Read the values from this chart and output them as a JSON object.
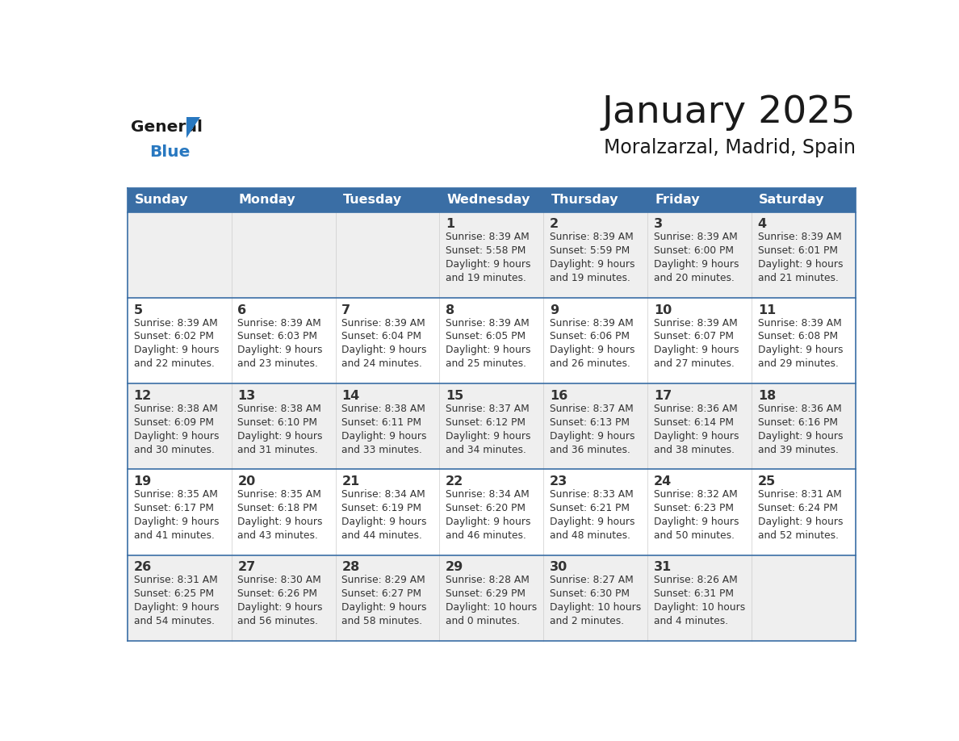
{
  "title": "January 2025",
  "subtitle": "Moralzarzal, Madrid, Spain",
  "days_of_week": [
    "Sunday",
    "Monday",
    "Tuesday",
    "Wednesday",
    "Thursday",
    "Friday",
    "Saturday"
  ],
  "header_bg": "#3a6ea5",
  "header_text": "#ffffff",
  "row_bg_odd": "#efefef",
  "row_bg_even": "#ffffff",
  "cell_text_color": "#333333",
  "day_num_color": "#333333",
  "grid_color": "#3a6ea5",
  "inner_grid_color": "#cccccc",
  "logo_general_color": "#1a1a1a",
  "logo_blue_color": "#2878c0",
  "weeks": [
    {
      "days": [
        {
          "day": 0,
          "num": "",
          "sunrise": "",
          "sunset": "",
          "daylight_line1": "",
          "daylight_line2": ""
        },
        {
          "day": 1,
          "num": "",
          "sunrise": "",
          "sunset": "",
          "daylight_line1": "",
          "daylight_line2": ""
        },
        {
          "day": 2,
          "num": "",
          "sunrise": "",
          "sunset": "",
          "daylight_line1": "",
          "daylight_line2": ""
        },
        {
          "day": 3,
          "num": "1",
          "sunrise": "8:39 AM",
          "sunset": "5:58 PM",
          "daylight_line1": "Daylight: 9 hours",
          "daylight_line2": "and 19 minutes."
        },
        {
          "day": 4,
          "num": "2",
          "sunrise": "8:39 AM",
          "sunset": "5:59 PM",
          "daylight_line1": "Daylight: 9 hours",
          "daylight_line2": "and 19 minutes."
        },
        {
          "day": 5,
          "num": "3",
          "sunrise": "8:39 AM",
          "sunset": "6:00 PM",
          "daylight_line1": "Daylight: 9 hours",
          "daylight_line2": "and 20 minutes."
        },
        {
          "day": 6,
          "num": "4",
          "sunrise": "8:39 AM",
          "sunset": "6:01 PM",
          "daylight_line1": "Daylight: 9 hours",
          "daylight_line2": "and 21 minutes."
        }
      ]
    },
    {
      "days": [
        {
          "day": 0,
          "num": "5",
          "sunrise": "8:39 AM",
          "sunset": "6:02 PM",
          "daylight_line1": "Daylight: 9 hours",
          "daylight_line2": "and 22 minutes."
        },
        {
          "day": 1,
          "num": "6",
          "sunrise": "8:39 AM",
          "sunset": "6:03 PM",
          "daylight_line1": "Daylight: 9 hours",
          "daylight_line2": "and 23 minutes."
        },
        {
          "day": 2,
          "num": "7",
          "sunrise": "8:39 AM",
          "sunset": "6:04 PM",
          "daylight_line1": "Daylight: 9 hours",
          "daylight_line2": "and 24 minutes."
        },
        {
          "day": 3,
          "num": "8",
          "sunrise": "8:39 AM",
          "sunset": "6:05 PM",
          "daylight_line1": "Daylight: 9 hours",
          "daylight_line2": "and 25 minutes."
        },
        {
          "day": 4,
          "num": "9",
          "sunrise": "8:39 AM",
          "sunset": "6:06 PM",
          "daylight_line1": "Daylight: 9 hours",
          "daylight_line2": "and 26 minutes."
        },
        {
          "day": 5,
          "num": "10",
          "sunrise": "8:39 AM",
          "sunset": "6:07 PM",
          "daylight_line1": "Daylight: 9 hours",
          "daylight_line2": "and 27 minutes."
        },
        {
          "day": 6,
          "num": "11",
          "sunrise": "8:39 AM",
          "sunset": "6:08 PM",
          "daylight_line1": "Daylight: 9 hours",
          "daylight_line2": "and 29 minutes."
        }
      ]
    },
    {
      "days": [
        {
          "day": 0,
          "num": "12",
          "sunrise": "8:38 AM",
          "sunset": "6:09 PM",
          "daylight_line1": "Daylight: 9 hours",
          "daylight_line2": "and 30 minutes."
        },
        {
          "day": 1,
          "num": "13",
          "sunrise": "8:38 AM",
          "sunset": "6:10 PM",
          "daylight_line1": "Daylight: 9 hours",
          "daylight_line2": "and 31 minutes."
        },
        {
          "day": 2,
          "num": "14",
          "sunrise": "8:38 AM",
          "sunset": "6:11 PM",
          "daylight_line1": "Daylight: 9 hours",
          "daylight_line2": "and 33 minutes."
        },
        {
          "day": 3,
          "num": "15",
          "sunrise": "8:37 AM",
          "sunset": "6:12 PM",
          "daylight_line1": "Daylight: 9 hours",
          "daylight_line2": "and 34 minutes."
        },
        {
          "day": 4,
          "num": "16",
          "sunrise": "8:37 AM",
          "sunset": "6:13 PM",
          "daylight_line1": "Daylight: 9 hours",
          "daylight_line2": "and 36 minutes."
        },
        {
          "day": 5,
          "num": "17",
          "sunrise": "8:36 AM",
          "sunset": "6:14 PM",
          "daylight_line1": "Daylight: 9 hours",
          "daylight_line2": "and 38 minutes."
        },
        {
          "day": 6,
          "num": "18",
          "sunrise": "8:36 AM",
          "sunset": "6:16 PM",
          "daylight_line1": "Daylight: 9 hours",
          "daylight_line2": "and 39 minutes."
        }
      ]
    },
    {
      "days": [
        {
          "day": 0,
          "num": "19",
          "sunrise": "8:35 AM",
          "sunset": "6:17 PM",
          "daylight_line1": "Daylight: 9 hours",
          "daylight_line2": "and 41 minutes."
        },
        {
          "day": 1,
          "num": "20",
          "sunrise": "8:35 AM",
          "sunset": "6:18 PM",
          "daylight_line1": "Daylight: 9 hours",
          "daylight_line2": "and 43 minutes."
        },
        {
          "day": 2,
          "num": "21",
          "sunrise": "8:34 AM",
          "sunset": "6:19 PM",
          "daylight_line1": "Daylight: 9 hours",
          "daylight_line2": "and 44 minutes."
        },
        {
          "day": 3,
          "num": "22",
          "sunrise": "8:34 AM",
          "sunset": "6:20 PM",
          "daylight_line1": "Daylight: 9 hours",
          "daylight_line2": "and 46 minutes."
        },
        {
          "day": 4,
          "num": "23",
          "sunrise": "8:33 AM",
          "sunset": "6:21 PM",
          "daylight_line1": "Daylight: 9 hours",
          "daylight_line2": "and 48 minutes."
        },
        {
          "day": 5,
          "num": "24",
          "sunrise": "8:32 AM",
          "sunset": "6:23 PM",
          "daylight_line1": "Daylight: 9 hours",
          "daylight_line2": "and 50 minutes."
        },
        {
          "day": 6,
          "num": "25",
          "sunrise": "8:31 AM",
          "sunset": "6:24 PM",
          "daylight_line1": "Daylight: 9 hours",
          "daylight_line2": "and 52 minutes."
        }
      ]
    },
    {
      "days": [
        {
          "day": 0,
          "num": "26",
          "sunrise": "8:31 AM",
          "sunset": "6:25 PM",
          "daylight_line1": "Daylight: 9 hours",
          "daylight_line2": "and 54 minutes."
        },
        {
          "day": 1,
          "num": "27",
          "sunrise": "8:30 AM",
          "sunset": "6:26 PM",
          "daylight_line1": "Daylight: 9 hours",
          "daylight_line2": "and 56 minutes."
        },
        {
          "day": 2,
          "num": "28",
          "sunrise": "8:29 AM",
          "sunset": "6:27 PM",
          "daylight_line1": "Daylight: 9 hours",
          "daylight_line2": "and 58 minutes."
        },
        {
          "day": 3,
          "num": "29",
          "sunrise": "8:28 AM",
          "sunset": "6:29 PM",
          "daylight_line1": "Daylight: 10 hours",
          "daylight_line2": "and 0 minutes."
        },
        {
          "day": 4,
          "num": "30",
          "sunrise": "8:27 AM",
          "sunset": "6:30 PM",
          "daylight_line1": "Daylight: 10 hours",
          "daylight_line2": "and 2 minutes."
        },
        {
          "day": 5,
          "num": "31",
          "sunrise": "8:26 AM",
          "sunset": "6:31 PM",
          "daylight_line1": "Daylight: 10 hours",
          "daylight_line2": "and 4 minutes."
        },
        {
          "day": 6,
          "num": "",
          "sunrise": "",
          "sunset": "",
          "daylight_line1": "",
          "daylight_line2": ""
        }
      ]
    }
  ]
}
